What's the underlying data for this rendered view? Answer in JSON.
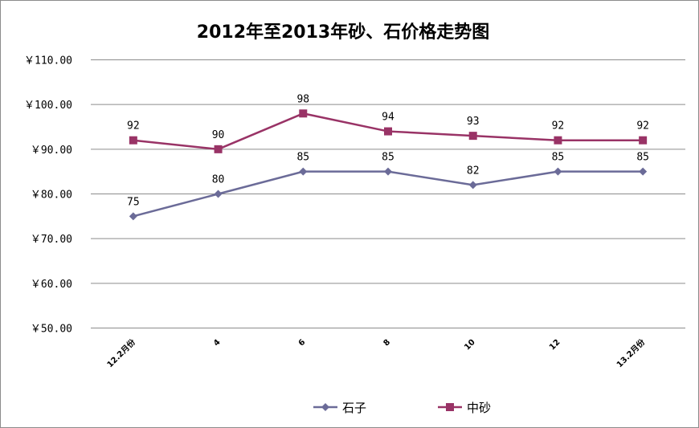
{
  "chart_data": {
    "type": "line",
    "title": "2012年至2013年砂、石价格走势图",
    "categories": [
      "12.2月份",
      "4",
      "6",
      "8",
      "10",
      "12",
      "13.2月份"
    ],
    "ylim": [
      50,
      110
    ],
    "yticks": [
      "￥50.00",
      "￥60.00",
      "￥70.00",
      "￥80.00",
      "￥90.00",
      "￥100.00",
      "￥110.00"
    ],
    "grid": true,
    "legend_position": "bottom",
    "series": [
      {
        "name": "石子",
        "values": [
          75,
          80,
          85,
          85,
          82,
          85,
          85
        ],
        "color": "#6b6b98",
        "marker": "diamond"
      },
      {
        "name": "中砂",
        "values": [
          92,
          90,
          98,
          94,
          93,
          92,
          92
        ],
        "color": "#993366",
        "marker": "square"
      }
    ]
  }
}
